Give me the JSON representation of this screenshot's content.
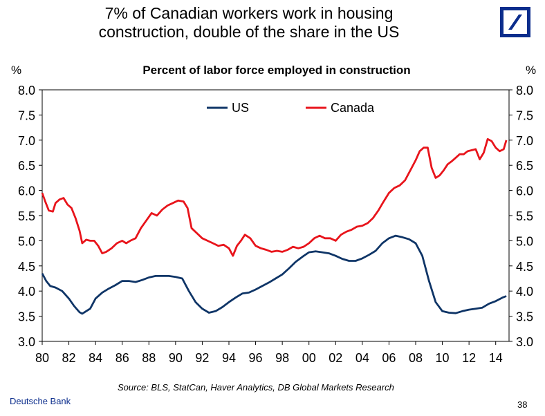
{
  "headline": {
    "line1": "7% of Canadian workers work in housing",
    "line2": "construction, double of the share in the US"
  },
  "footer": {
    "source": "Source: BLS, StatCan, Haver Analytics, DB Global Markets Research",
    "brand": "Deutsche Bank",
    "page_number": "38"
  },
  "logo": {
    "icon": "deutsche-bank-logo-icon",
    "color": "#0b2d8c"
  },
  "chart_data": {
    "type": "line",
    "title": "Percent of labor force employed in construction",
    "ylabel_left": "%",
    "ylabel_right": "%",
    "xlabel": "",
    "xlim": [
      1980,
      2015
    ],
    "ylim": [
      3.0,
      8.0
    ],
    "x_ticks": [
      1980,
      1982,
      1984,
      1986,
      1988,
      1990,
      1992,
      1994,
      1996,
      1998,
      2000,
      2002,
      2004,
      2006,
      2008,
      2010,
      2012,
      2014
    ],
    "x_tick_labels": [
      "80",
      "82",
      "84",
      "86",
      "88",
      "90",
      "92",
      "94",
      "96",
      "98",
      "00",
      "02",
      "04",
      "06",
      "08",
      "10",
      "12",
      "14"
    ],
    "y_ticks": [
      3.0,
      3.5,
      4.0,
      4.5,
      5.0,
      5.5,
      6.0,
      6.5,
      7.0,
      7.5,
      8.0
    ],
    "y_tick_labels": [
      "3.0",
      "3.5",
      "4.0",
      "4.5",
      "5.0",
      "5.5",
      "6.0",
      "6.5",
      "7.0",
      "7.5",
      "8.0"
    ],
    "grid": false,
    "legend_position": "top-center",
    "series": [
      {
        "name": "US",
        "color": "#0f3567",
        "x": [
          1980.0,
          1980.3,
          1980.6,
          1981.0,
          1981.5,
          1982.0,
          1982.4,
          1982.8,
          1983.0,
          1983.3,
          1983.6,
          1984.0,
          1984.5,
          1985.0,
          1985.5,
          1986.0,
          1986.5,
          1987.0,
          1987.5,
          1988.0,
          1988.5,
          1989.0,
          1989.5,
          1990.0,
          1990.5,
          1991.0,
          1991.5,
          1992.0,
          1992.5,
          1993.0,
          1993.5,
          1994.0,
          1994.5,
          1995.0,
          1995.5,
          1996.0,
          1996.5,
          1997.0,
          1997.5,
          1998.0,
          1998.5,
          1999.0,
          1999.5,
          2000.0,
          2000.5,
          2001.0,
          2001.5,
          2002.0,
          2002.5,
          2003.0,
          2003.5,
          2004.0,
          2004.5,
          2005.0,
          2005.5,
          2006.0,
          2006.5,
          2007.0,
          2007.5,
          2008.0,
          2008.5,
          2009.0,
          2009.5,
          2010.0,
          2010.5,
          2011.0,
          2011.5,
          2012.0,
          2012.5,
          2013.0,
          2013.5,
          2014.0,
          2014.5,
          2014.8
        ],
        "values": [
          4.35,
          4.2,
          4.1,
          4.07,
          4.0,
          3.85,
          3.7,
          3.58,
          3.55,
          3.6,
          3.65,
          3.85,
          3.97,
          4.05,
          4.12,
          4.2,
          4.2,
          4.18,
          4.22,
          4.27,
          4.3,
          4.3,
          4.3,
          4.28,
          4.25,
          4.0,
          3.78,
          3.65,
          3.57,
          3.6,
          3.68,
          3.78,
          3.87,
          3.95,
          3.97,
          4.03,
          4.1,
          4.17,
          4.25,
          4.33,
          4.45,
          4.58,
          4.68,
          4.77,
          4.79,
          4.77,
          4.75,
          4.7,
          4.64,
          4.6,
          4.6,
          4.65,
          4.72,
          4.8,
          4.95,
          5.05,
          5.1,
          5.07,
          5.03,
          4.95,
          4.7,
          4.2,
          3.78,
          3.6,
          3.57,
          3.56,
          3.6,
          3.63,
          3.65,
          3.67,
          3.75,
          3.8,
          3.87,
          3.9
        ]
      },
      {
        "name": "Canada",
        "color": "#e8141b",
        "x": [
          1980.0,
          1980.2,
          1980.5,
          1980.8,
          1981.0,
          1981.3,
          1981.6,
          1981.9,
          1982.2,
          1982.5,
          1982.8,
          1983.0,
          1983.3,
          1983.6,
          1983.9,
          1984.2,
          1984.5,
          1984.8,
          1985.2,
          1985.6,
          1986.0,
          1986.3,
          1986.6,
          1987.0,
          1987.4,
          1987.8,
          1988.2,
          1988.6,
          1989.0,
          1989.4,
          1989.8,
          1990.2,
          1990.6,
          1990.9,
          1991.2,
          1991.6,
          1992.0,
          1992.4,
          1992.8,
          1993.2,
          1993.6,
          1994.0,
          1994.3,
          1994.6,
          1994.9,
          1995.2,
          1995.6,
          1996.0,
          1996.4,
          1996.8,
          1997.2,
          1997.6,
          1998.0,
          1998.4,
          1998.8,
          1999.2,
          1999.6,
          2000.0,
          2000.4,
          2000.8,
          2001.2,
          2001.6,
          2002.0,
          2002.4,
          2002.8,
          2003.2,
          2003.6,
          2004.0,
          2004.4,
          2004.8,
          2005.2,
          2005.6,
          2006.0,
          2006.4,
          2006.8,
          2007.2,
          2007.6,
          2008.0,
          2008.3,
          2008.6,
          2008.9,
          2009.2,
          2009.5,
          2009.8,
          2010.1,
          2010.4,
          2010.7,
          2011.0,
          2011.3,
          2011.6,
          2011.9,
          2012.2,
          2012.5,
          2012.8,
          2013.1,
          2013.4,
          2013.7,
          2014.0,
          2014.3,
          2014.6,
          2014.8
        ],
        "values": [
          5.95,
          5.8,
          5.6,
          5.58,
          5.75,
          5.82,
          5.85,
          5.72,
          5.65,
          5.45,
          5.2,
          4.95,
          5.02,
          5.0,
          5.0,
          4.9,
          4.75,
          4.78,
          4.85,
          4.95,
          5.0,
          4.95,
          5.0,
          5.05,
          5.25,
          5.4,
          5.55,
          5.5,
          5.62,
          5.7,
          5.75,
          5.8,
          5.78,
          5.65,
          5.25,
          5.15,
          5.05,
          5.0,
          4.95,
          4.9,
          4.92,
          4.85,
          4.7,
          4.9,
          5.0,
          5.12,
          5.05,
          4.9,
          4.85,
          4.82,
          4.78,
          4.8,
          4.78,
          4.82,
          4.88,
          4.85,
          4.88,
          4.95,
          5.05,
          5.1,
          5.05,
          5.05,
          5.0,
          5.12,
          5.18,
          5.22,
          5.28,
          5.3,
          5.35,
          5.45,
          5.6,
          5.78,
          5.95,
          6.05,
          6.1,
          6.2,
          6.4,
          6.6,
          6.78,
          6.85,
          6.85,
          6.45,
          6.25,
          6.3,
          6.4,
          6.52,
          6.58,
          6.65,
          6.72,
          6.72,
          6.78,
          6.8,
          6.82,
          6.62,
          6.75,
          7.02,
          6.98,
          6.85,
          6.78,
          6.82,
          7.0
        ]
      }
    ]
  }
}
